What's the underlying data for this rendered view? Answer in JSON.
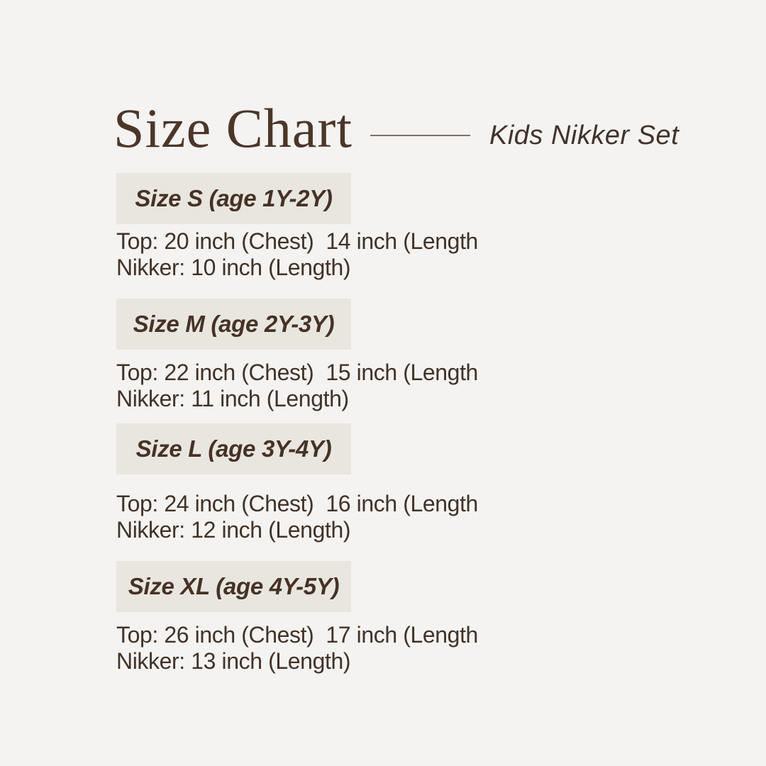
{
  "page": {
    "title": "Size Chart",
    "product_label": "Kids Nikker Set"
  },
  "sections": [
    {
      "header": "Size S (age 1Y-2Y)",
      "line1": "Top: 20 inch (Chest)  14 inch (Length",
      "line2": "Nikker: 10 inch (Length)"
    },
    {
      "header": "Size M (age 2Y-3Y)",
      "line1": "Top: 22 inch (Chest)  15 inch (Length",
      "line2": "Nikker: 11 inch (Length)"
    },
    {
      "header": "Size L (age 3Y-4Y)",
      "line1": "Top: 24 inch (Chest)  16 inch (Length",
      "line2": "Nikker: 12 inch (Length)"
    },
    {
      "header": "Size XL (age 4Y-5Y)",
      "line1": "Top: 26 inch (Chest)  17 inch (Length",
      "line2": "Nikker: 13 inch (Length)"
    }
  ],
  "colors": {
    "background": "#f4f3f1",
    "header_box": "#e9e6df",
    "title_text": "#4b3629",
    "body_text": "#413228",
    "divider": "#7d7164"
  }
}
